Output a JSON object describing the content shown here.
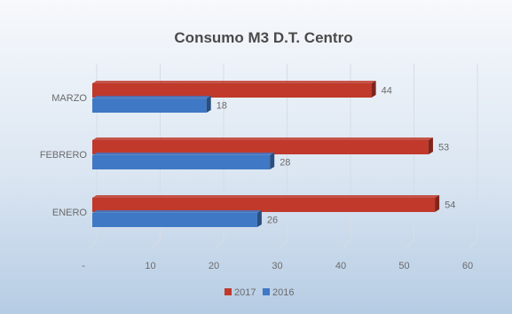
{
  "chart_data": {
    "type": "bar",
    "orientation": "horizontal",
    "style": "3d",
    "title": "Consumo M3 D.T. Centro",
    "categories": [
      "ENERO",
      "FEBRERO",
      "MARZO"
    ],
    "series": [
      {
        "name": "2017",
        "values": [
          54,
          53,
          44
        ],
        "color": "#c0392b"
      },
      {
        "name": "2016",
        "values": [
          26,
          28,
          18
        ],
        "color": "#3f78c4"
      }
    ],
    "x_ticks": [
      "-",
      "10",
      "20",
      "30",
      "40",
      "50",
      "60"
    ],
    "xlim": [
      0,
      60
    ],
    "grid": true,
    "legend_position": "bottom",
    "colors": {
      "background_top": "#f6f9fd",
      "background_bottom": "#b9cfe6",
      "title": "#4a4a4a",
      "tick_label": "#6b6b6b",
      "grid": "#d6dde6"
    }
  }
}
